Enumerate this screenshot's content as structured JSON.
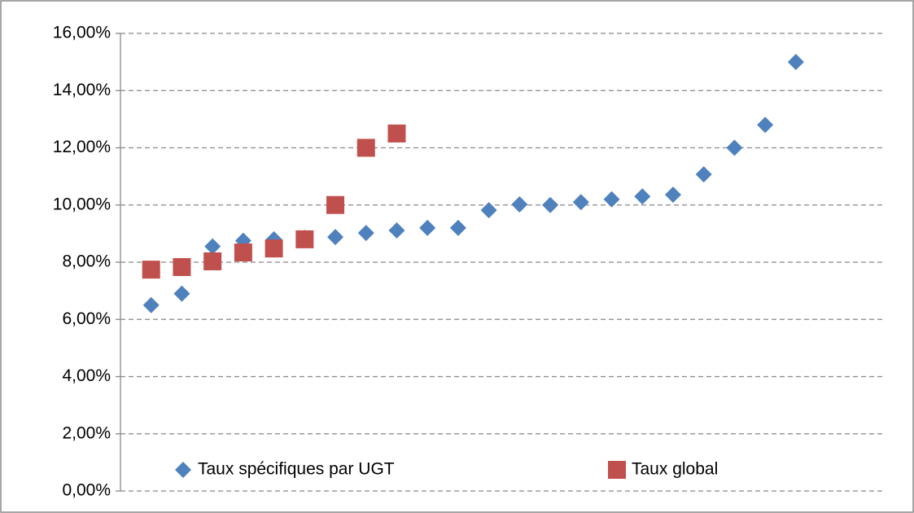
{
  "chart_data": {
    "type": "scatter",
    "series": [
      {
        "name": "Taux spécifiques par UGT",
        "color": "#4f81bd",
        "marker": "diamond",
        "x": [
          1,
          2,
          3,
          4,
          5,
          6,
          7,
          8,
          9,
          10,
          11,
          12,
          13,
          14,
          15,
          16,
          17,
          18,
          19,
          20,
          21,
          22
        ],
        "values": [
          6.5,
          6.9,
          8.55,
          8.75,
          8.8,
          8.85,
          8.88,
          9.02,
          9.11,
          9.2,
          9.2,
          9.82,
          10.02,
          10.0,
          10.1,
          10.2,
          10.3,
          10.36,
          11.07,
          12.0,
          12.8,
          15.0
        ]
      },
      {
        "name": "Taux global",
        "color": "#c0504d",
        "marker": "square",
        "x": [
          1,
          2,
          3,
          4,
          5,
          6,
          7,
          8,
          9
        ],
        "values": [
          7.74,
          7.83,
          8.03,
          8.34,
          8.48,
          8.8,
          10.0,
          12.0,
          12.5
        ]
      }
    ],
    "xlim": [
      0,
      25
    ],
    "ylim": [
      0,
      16
    ],
    "yticks": [
      {
        "value": 0,
        "label": "0,00%"
      },
      {
        "value": 2,
        "label": "2,00%"
      },
      {
        "value": 4,
        "label": "4,00%"
      },
      {
        "value": 6,
        "label": "6,00%"
      },
      {
        "value": 8,
        "label": "8,00%"
      },
      {
        "value": 10,
        "label": "10,00%"
      },
      {
        "value": 12,
        "label": "12,00%"
      },
      {
        "value": 14,
        "label": "14,00%"
      },
      {
        "value": 16,
        "label": "16,00%"
      }
    ],
    "grid": true,
    "legend": "bottom"
  }
}
